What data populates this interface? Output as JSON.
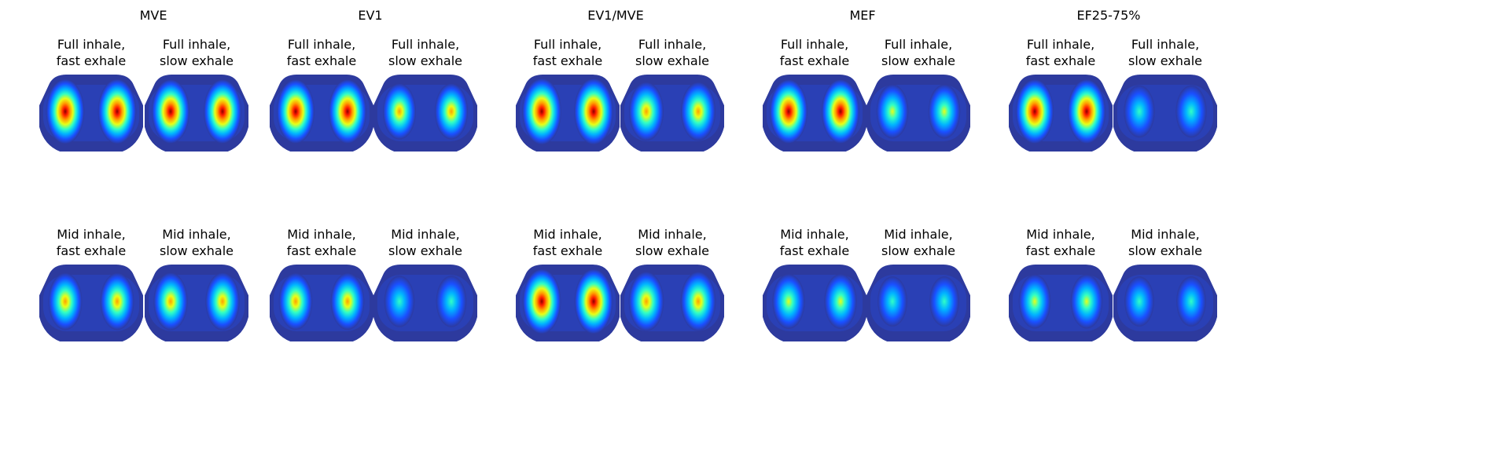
{
  "figure": {
    "groups": [
      {
        "title": "MVE",
        "panels": [
          {
            "title_line1": "Full inhale,",
            "title_line2": "fast exhale",
            "intensity": 0.95
          },
          {
            "title_line1": "Full inhale,",
            "title_line2": "slow exhale",
            "intensity": 0.92
          },
          {
            "title_line1": "Mid inhale,",
            "title_line2": "fast exhale",
            "intensity": 0.66
          },
          {
            "title_line1": "Mid inhale,",
            "title_line2": "slow exhale",
            "intensity": 0.68
          }
        ]
      },
      {
        "title": "EV1",
        "panels": [
          {
            "title_line1": "Full inhale,",
            "title_line2": "fast exhale",
            "intensity": 0.92
          },
          {
            "title_line1": "Full inhale,",
            "title_line2": "slow exhale",
            "intensity": 0.62
          },
          {
            "title_line1": "Mid inhale,",
            "title_line2": "fast exhale",
            "intensity": 0.65
          },
          {
            "title_line1": "Mid inhale,",
            "title_line2": "slow exhale",
            "intensity": 0.45
          }
        ]
      },
      {
        "title": "EV1/MVE",
        "panels": [
          {
            "title_line1": "Full inhale,",
            "title_line2": "fast exhale",
            "intensity": 1.0
          },
          {
            "title_line1": "Full inhale,",
            "title_line2": "slow exhale",
            "intensity": 0.72
          },
          {
            "title_line1": "Mid inhale,",
            "title_line2": "fast exhale",
            "intensity": 0.95
          },
          {
            "title_line1": "Mid inhale,",
            "title_line2": "slow exhale",
            "intensity": 0.75
          }
        ]
      },
      {
        "title": "MEF",
        "panels": [
          {
            "title_line1": "Full inhale,",
            "title_line2": "fast exhale",
            "intensity": 0.92
          },
          {
            "title_line1": "Full inhale,",
            "title_line2": "slow exhale",
            "intensity": 0.55
          },
          {
            "title_line1": "Mid inhale,",
            "title_line2": "fast exhale",
            "intensity": 0.58
          },
          {
            "title_line1": "Mid inhale,",
            "title_line2": "slow exhale",
            "intensity": 0.4
          }
        ]
      },
      {
        "title": "EF25-75%",
        "panels": [
          {
            "title_line1": "Full inhale,",
            "title_line2": "fast exhale",
            "intensity": 0.93
          },
          {
            "title_line1": "Full inhale,",
            "title_line2": "slow exhale",
            "intensity": 0.48
          },
          {
            "title_line1": "Mid inhale,",
            "title_line2": "fast exhale",
            "intensity": 0.55
          },
          {
            "title_line1": "Mid inhale,",
            "title_line2": "slow exhale",
            "intensity": 0.4
          }
        ]
      }
    ]
  },
  "chart_data": {
    "type": "heatmap",
    "colormap": "jet",
    "background_color": "#2d3a9e",
    "titles": [
      "MVE",
      "EV1",
      "EV1/MVE",
      "MEF",
      "EF25-75%"
    ],
    "panel_titles": [
      "Full inhale, fast exhale",
      "Full inhale, slow exhale",
      "Mid inhale, fast exhale",
      "Mid inhale, slow exhale"
    ]
  }
}
